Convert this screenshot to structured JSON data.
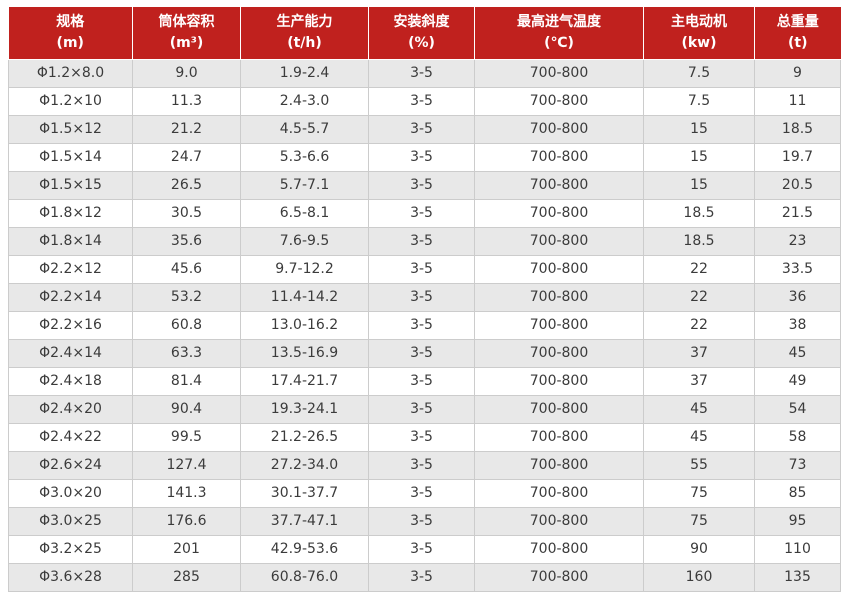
{
  "colors": {
    "header_bg": "#c0211e",
    "header_text": "#ffffff",
    "row_alt_bg": "#e8e8e8",
    "row_bg": "#ffffff",
    "cell_border": "#cccccc",
    "cell_text": "#3b3b3b"
  },
  "table": {
    "columns": [
      {
        "label": "规格",
        "unit": "(m)"
      },
      {
        "label": "筒体容积",
        "unit": "(m³)"
      },
      {
        "label": "生产能力",
        "unit": "(t/h)"
      },
      {
        "label": "安装斜度",
        "unit": "(%)"
      },
      {
        "label": "最高进气温度",
        "unit": "(℃)"
      },
      {
        "label": "主电动机",
        "unit": "(kw)"
      },
      {
        "label": "总重量",
        "unit": "(t)"
      }
    ],
    "rows": [
      [
        "Φ1.2×8.0",
        "9.0",
        "1.9-2.4",
        "3-5",
        "700-800",
        "7.5",
        "9"
      ],
      [
        "Φ1.2×10",
        "11.3",
        "2.4-3.0",
        "3-5",
        "700-800",
        "7.5",
        "11"
      ],
      [
        "Φ1.5×12",
        "21.2",
        "4.5-5.7",
        "3-5",
        "700-800",
        "15",
        "18.5"
      ],
      [
        "Φ1.5×14",
        "24.7",
        "5.3-6.6",
        "3-5",
        "700-800",
        "15",
        "19.7"
      ],
      [
        "Φ1.5×15",
        "26.5",
        "5.7-7.1",
        "3-5",
        "700-800",
        "15",
        "20.5"
      ],
      [
        "Φ1.8×12",
        "30.5",
        "6.5-8.1",
        "3-5",
        "700-800",
        "18.5",
        "21.5"
      ],
      [
        "Φ1.8×14",
        "35.6",
        "7.6-9.5",
        "3-5",
        "700-800",
        "18.5",
        "23"
      ],
      [
        "Φ2.2×12",
        "45.6",
        "9.7-12.2",
        "3-5",
        "700-800",
        "22",
        "33.5"
      ],
      [
        "Φ2.2×14",
        "53.2",
        "11.4-14.2",
        "3-5",
        "700-800",
        "22",
        "36"
      ],
      [
        "Φ2.2×16",
        "60.8",
        "13.0-16.2",
        "3-5",
        "700-800",
        "22",
        "38"
      ],
      [
        "Φ2.4×14",
        "63.3",
        "13.5-16.9",
        "3-5",
        "700-800",
        "37",
        "45"
      ],
      [
        "Φ2.4×18",
        "81.4",
        "17.4-21.7",
        "3-5",
        "700-800",
        "37",
        "49"
      ],
      [
        "Φ2.4×20",
        "90.4",
        "19.3-24.1",
        "3-5",
        "700-800",
        "45",
        "54"
      ],
      [
        "Φ2.4×22",
        "99.5",
        "21.2-26.5",
        "3-5",
        "700-800",
        "45",
        "58"
      ],
      [
        "Φ2.6×24",
        "127.4",
        "27.2-34.0",
        "3-5",
        "700-800",
        "55",
        "73"
      ],
      [
        "Φ3.0×20",
        "141.3",
        "30.1-37.7",
        "3-5",
        "700-800",
        "75",
        "85"
      ],
      [
        "Φ3.0×25",
        "176.6",
        "37.7-47.1",
        "3-5",
        "700-800",
        "75",
        "95"
      ],
      [
        "Φ3.2×25",
        "201",
        "42.9-53.6",
        "3-5",
        "700-800",
        "90",
        "110"
      ],
      [
        "Φ3.6×28",
        "285",
        "60.8-76.0",
        "3-5",
        "700-800",
        "160",
        "135"
      ]
    ]
  }
}
